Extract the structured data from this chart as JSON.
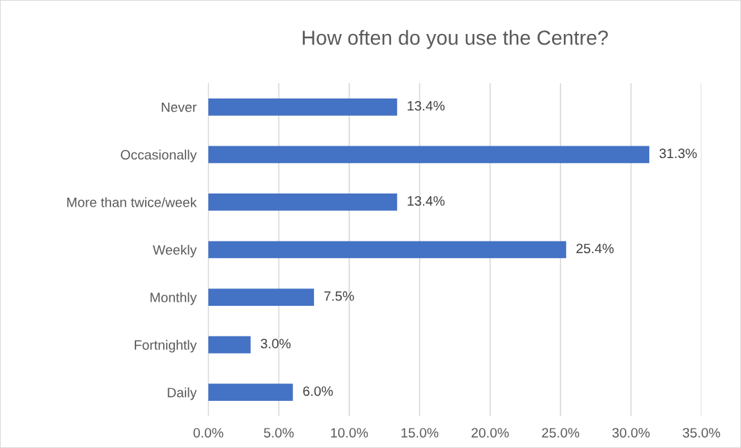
{
  "chart_data": {
    "type": "bar",
    "orientation": "horizontal",
    "title": "How often do you use the Centre?",
    "categories": [
      "Never",
      "Occasionally",
      "More than twice/week",
      "Weekly",
      "Monthly",
      "Fortnightly",
      "Daily"
    ],
    "values": [
      13.4,
      31.3,
      13.4,
      25.4,
      7.5,
      3.0,
      6.0
    ],
    "value_labels": [
      "13.4%",
      "31.3%",
      "13.4%",
      "25.4%",
      "7.5%",
      "3.0%",
      "6.0%"
    ],
    "color": "#4472c4",
    "xlim": [
      0,
      35
    ],
    "xticks": [
      {
        "value": 0,
        "label": "0.0%"
      },
      {
        "value": 5,
        "label": "5.0%"
      },
      {
        "value": 10,
        "label": "10.0%"
      },
      {
        "value": 15,
        "label": "15.0%"
      },
      {
        "value": 20,
        "label": "20.0%"
      },
      {
        "value": 25,
        "label": "25.0%"
      },
      {
        "value": 30,
        "label": "30.0%"
      },
      {
        "value": 35,
        "label": "35.0%"
      }
    ],
    "grid": "x"
  }
}
